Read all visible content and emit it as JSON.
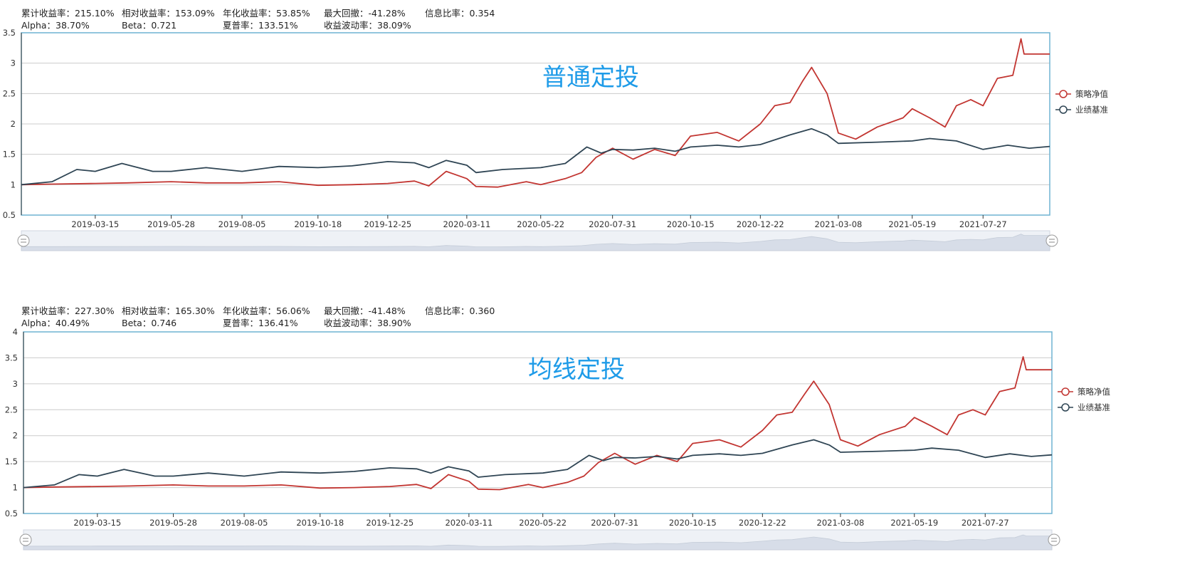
{
  "colors": {
    "strategy": "#c23531",
    "benchmark": "#2f4554",
    "title": "#1e9be8",
    "axis": "#6fb3d2",
    "grid": "#cccccc",
    "slider_fill": "#d7dde8"
  },
  "chart_data": [
    {
      "type": "line",
      "title": "普通定投",
      "stats": [
        {
          "label": "累计收益率：",
          "value": "215.10%"
        },
        {
          "label": "相对收益率：",
          "value": "153.09%"
        },
        {
          "label": "年化收益率：",
          "value": "53.85%"
        },
        {
          "label": "最大回撤：",
          "value": "-41.28%"
        },
        {
          "label": "信息比率：",
          "value": "0.354"
        },
        {
          "label": "Alpha：",
          "value": "38.70%"
        },
        {
          "label": "Beta：",
          "value": "0.721"
        },
        {
          "label": "夏普率：",
          "value": "133.51%"
        },
        {
          "label": "收益波动率：",
          "value": "38.09%"
        }
      ],
      "x_start": "2019-01-02",
      "x_end": "2021-09-30",
      "x_ticks": [
        "2019-03-15",
        "2019-05-28",
        "2019-08-05",
        "2019-10-18",
        "2019-12-25",
        "2020-03-11",
        "2020-05-22",
        "2020-07-31",
        "2020-10-15",
        "2020-12-22",
        "2021-03-08",
        "2021-05-19",
        "2021-07-27"
      ],
      "ylim": [
        0.5,
        3.5
      ],
      "y_ticks": [
        "0.5",
        "1",
        "1.5",
        "2",
        "2.5",
        "3",
        "3.5"
      ],
      "legend_position": "right",
      "series": [
        {
          "name": "策略净值",
          "points": [
            [
              "2019-01-02",
              1.0
            ],
            [
              "2019-02-01",
              1.01
            ],
            [
              "2019-03-15",
              1.02
            ],
            [
              "2019-04-15",
              1.03
            ],
            [
              "2019-05-28",
              1.05
            ],
            [
              "2019-07-01",
              1.03
            ],
            [
              "2019-08-05",
              1.03
            ],
            [
              "2019-09-10",
              1.05
            ],
            [
              "2019-10-18",
              0.99
            ],
            [
              "2019-11-20",
              1.0
            ],
            [
              "2019-12-25",
              1.02
            ],
            [
              "2020-01-20",
              1.06
            ],
            [
              "2020-02-03",
              0.98
            ],
            [
              "2020-02-20",
              1.22
            ],
            [
              "2020-03-11",
              1.1
            ],
            [
              "2020-03-20",
              0.97
            ],
            [
              "2020-04-10",
              0.96
            ],
            [
              "2020-05-08",
              1.05
            ],
            [
              "2020-05-22",
              1.0
            ],
            [
              "2020-06-15",
              1.1
            ],
            [
              "2020-07-01",
              1.2
            ],
            [
              "2020-07-15",
              1.45
            ],
            [
              "2020-07-31",
              1.6
            ],
            [
              "2020-08-20",
              1.42
            ],
            [
              "2020-09-10",
              1.58
            ],
            [
              "2020-09-30",
              1.48
            ],
            [
              "2020-10-15",
              1.8
            ],
            [
              "2020-11-10",
              1.86
            ],
            [
              "2020-12-01",
              1.72
            ],
            [
              "2020-12-22",
              2.0
            ],
            [
              "2021-01-05",
              2.3
            ],
            [
              "2021-01-20",
              2.35
            ],
            [
              "2021-02-01",
              2.7
            ],
            [
              "2021-02-10",
              2.93
            ],
            [
              "2021-02-25",
              2.5
            ],
            [
              "2021-03-08",
              1.85
            ],
            [
              "2021-03-25",
              1.75
            ],
            [
              "2021-04-15",
              1.95
            ],
            [
              "2021-05-10",
              2.1
            ],
            [
              "2021-05-19",
              2.25
            ],
            [
              "2021-06-05",
              2.1
            ],
            [
              "2021-06-20",
              1.95
            ],
            [
              "2021-07-01",
              2.3
            ],
            [
              "2021-07-15",
              2.4
            ],
            [
              "2021-07-27",
              2.3
            ],
            [
              "2021-08-10",
              2.75
            ],
            [
              "2021-08-25",
              2.8
            ],
            [
              "2021-09-02",
              3.4
            ],
            [
              "2021-09-05",
              3.15
            ],
            [
              "2021-09-30",
              3.15
            ]
          ]
        },
        {
          "name": "业绩基准",
          "points": [
            [
              "2019-01-02",
              1.0
            ],
            [
              "2019-02-01",
              1.05
            ],
            [
              "2019-02-25",
              1.25
            ],
            [
              "2019-03-15",
              1.22
            ],
            [
              "2019-04-10",
              1.35
            ],
            [
              "2019-05-10",
              1.22
            ],
            [
              "2019-05-28",
              1.22
            ],
            [
              "2019-07-01",
              1.28
            ],
            [
              "2019-08-05",
              1.22
            ],
            [
              "2019-09-10",
              1.3
            ],
            [
              "2019-10-18",
              1.28
            ],
            [
              "2019-11-20",
              1.31
            ],
            [
              "2019-12-25",
              1.38
            ],
            [
              "2020-01-20",
              1.36
            ],
            [
              "2020-02-03",
              1.28
            ],
            [
              "2020-02-20",
              1.4
            ],
            [
              "2020-03-11",
              1.32
            ],
            [
              "2020-03-20",
              1.2
            ],
            [
              "2020-04-15",
              1.25
            ],
            [
              "2020-05-22",
              1.28
            ],
            [
              "2020-06-15",
              1.35
            ],
            [
              "2020-07-06",
              1.62
            ],
            [
              "2020-07-20",
              1.52
            ],
            [
              "2020-07-31",
              1.58
            ],
            [
              "2020-08-20",
              1.57
            ],
            [
              "2020-09-10",
              1.6
            ],
            [
              "2020-09-30",
              1.55
            ],
            [
              "2020-10-15",
              1.62
            ],
            [
              "2020-11-10",
              1.65
            ],
            [
              "2020-12-01",
              1.62
            ],
            [
              "2020-12-22",
              1.66
            ],
            [
              "2021-01-20",
              1.82
            ],
            [
              "2021-02-10",
              1.92
            ],
            [
              "2021-02-25",
              1.82
            ],
            [
              "2021-03-08",
              1.68
            ],
            [
              "2021-04-15",
              1.7
            ],
            [
              "2021-05-19",
              1.72
            ],
            [
              "2021-06-05",
              1.76
            ],
            [
              "2021-07-01",
              1.72
            ],
            [
              "2021-07-27",
              1.58
            ],
            [
              "2021-08-20",
              1.65
            ],
            [
              "2021-09-10",
              1.6
            ],
            [
              "2021-09-30",
              1.63
            ]
          ]
        }
      ]
    },
    {
      "type": "line",
      "title": "均线定投",
      "stats": [
        {
          "label": "累计收益率：",
          "value": "227.30%"
        },
        {
          "label": "相对收益率：",
          "value": "165.30%"
        },
        {
          "label": "年化收益率：",
          "value": "56.06%"
        },
        {
          "label": "最大回撤：",
          "value": "-41.48%"
        },
        {
          "label": "信息比率：",
          "value": "0.360"
        },
        {
          "label": "Alpha：",
          "value": "40.49%"
        },
        {
          "label": "Beta：",
          "value": "0.746"
        },
        {
          "label": "夏普率：",
          "value": "136.41%"
        },
        {
          "label": "收益波动率：",
          "value": "38.90%"
        }
      ],
      "x_start": "2019-01-02",
      "x_end": "2021-09-30",
      "x_ticks": [
        "2019-03-15",
        "2019-05-28",
        "2019-08-05",
        "2019-10-18",
        "2019-12-25",
        "2020-03-11",
        "2020-05-22",
        "2020-07-31",
        "2020-10-15",
        "2020-12-22",
        "2021-03-08",
        "2021-05-19",
        "2021-07-27"
      ],
      "ylim": [
        0.5,
        4
      ],
      "y_ticks": [
        "0.5",
        "1",
        "1.5",
        "2",
        "2.5",
        "3",
        "3.5",
        "4"
      ],
      "legend_position": "right",
      "series": [
        {
          "name": "策略净值",
          "points": [
            [
              "2019-01-02",
              1.0
            ],
            [
              "2019-02-01",
              1.01
            ],
            [
              "2019-03-15",
              1.02
            ],
            [
              "2019-04-15",
              1.03
            ],
            [
              "2019-05-28",
              1.05
            ],
            [
              "2019-07-01",
              1.03
            ],
            [
              "2019-08-05",
              1.03
            ],
            [
              "2019-09-10",
              1.05
            ],
            [
              "2019-10-18",
              0.99
            ],
            [
              "2019-11-20",
              1.0
            ],
            [
              "2019-12-25",
              1.02
            ],
            [
              "2020-01-20",
              1.06
            ],
            [
              "2020-02-03",
              0.98
            ],
            [
              "2020-02-20",
              1.25
            ],
            [
              "2020-03-11",
              1.12
            ],
            [
              "2020-03-20",
              0.97
            ],
            [
              "2020-04-10",
              0.96
            ],
            [
              "2020-05-08",
              1.06
            ],
            [
              "2020-05-22",
              1.0
            ],
            [
              "2020-06-15",
              1.1
            ],
            [
              "2020-07-01",
              1.22
            ],
            [
              "2020-07-15",
              1.48
            ],
            [
              "2020-07-31",
              1.66
            ],
            [
              "2020-08-20",
              1.45
            ],
            [
              "2020-09-10",
              1.62
            ],
            [
              "2020-09-30",
              1.5
            ],
            [
              "2020-10-15",
              1.85
            ],
            [
              "2020-11-10",
              1.92
            ],
            [
              "2020-12-01",
              1.78
            ],
            [
              "2020-12-22",
              2.1
            ],
            [
              "2021-01-05",
              2.4
            ],
            [
              "2021-01-20",
              2.45
            ],
            [
              "2021-02-01",
              2.8
            ],
            [
              "2021-02-10",
              3.05
            ],
            [
              "2021-02-25",
              2.6
            ],
            [
              "2021-03-08",
              1.92
            ],
            [
              "2021-03-25",
              1.8
            ],
            [
              "2021-04-15",
              2.02
            ],
            [
              "2021-05-10",
              2.18
            ],
            [
              "2021-05-19",
              2.35
            ],
            [
              "2021-06-05",
              2.18
            ],
            [
              "2021-06-20",
              2.02
            ],
            [
              "2021-07-01",
              2.4
            ],
            [
              "2021-07-15",
              2.5
            ],
            [
              "2021-07-27",
              2.4
            ],
            [
              "2021-08-10",
              2.85
            ],
            [
              "2021-08-25",
              2.92
            ],
            [
              "2021-09-02",
              3.52
            ],
            [
              "2021-09-05",
              3.27
            ],
            [
              "2021-09-30",
              3.27
            ]
          ]
        },
        {
          "name": "业绩基准",
          "points": [
            [
              "2019-01-02",
              1.0
            ],
            [
              "2019-02-01",
              1.05
            ],
            [
              "2019-02-25",
              1.25
            ],
            [
              "2019-03-15",
              1.22
            ],
            [
              "2019-04-10",
              1.35
            ],
            [
              "2019-05-10",
              1.22
            ],
            [
              "2019-05-28",
              1.22
            ],
            [
              "2019-07-01",
              1.28
            ],
            [
              "2019-08-05",
              1.22
            ],
            [
              "2019-09-10",
              1.3
            ],
            [
              "2019-10-18",
              1.28
            ],
            [
              "2019-11-20",
              1.31
            ],
            [
              "2019-12-25",
              1.38
            ],
            [
              "2020-01-20",
              1.36
            ],
            [
              "2020-02-03",
              1.28
            ],
            [
              "2020-02-20",
              1.4
            ],
            [
              "2020-03-11",
              1.32
            ],
            [
              "2020-03-20",
              1.2
            ],
            [
              "2020-04-15",
              1.25
            ],
            [
              "2020-05-22",
              1.28
            ],
            [
              "2020-06-15",
              1.35
            ],
            [
              "2020-07-06",
              1.62
            ],
            [
              "2020-07-20",
              1.52
            ],
            [
              "2020-07-31",
              1.58
            ],
            [
              "2020-08-20",
              1.57
            ],
            [
              "2020-09-10",
              1.6
            ],
            [
              "2020-09-30",
              1.55
            ],
            [
              "2020-10-15",
              1.62
            ],
            [
              "2020-11-10",
              1.65
            ],
            [
              "2020-12-01",
              1.62
            ],
            [
              "2020-12-22",
              1.66
            ],
            [
              "2021-01-20",
              1.82
            ],
            [
              "2021-02-10",
              1.92
            ],
            [
              "2021-02-25",
              1.82
            ],
            [
              "2021-03-08",
              1.68
            ],
            [
              "2021-04-15",
              1.7
            ],
            [
              "2021-05-19",
              1.72
            ],
            [
              "2021-06-05",
              1.76
            ],
            [
              "2021-07-01",
              1.72
            ],
            [
              "2021-07-27",
              1.58
            ],
            [
              "2021-08-20",
              1.65
            ],
            [
              "2021-09-10",
              1.6
            ],
            [
              "2021-09-30",
              1.63
            ]
          ]
        }
      ]
    }
  ]
}
